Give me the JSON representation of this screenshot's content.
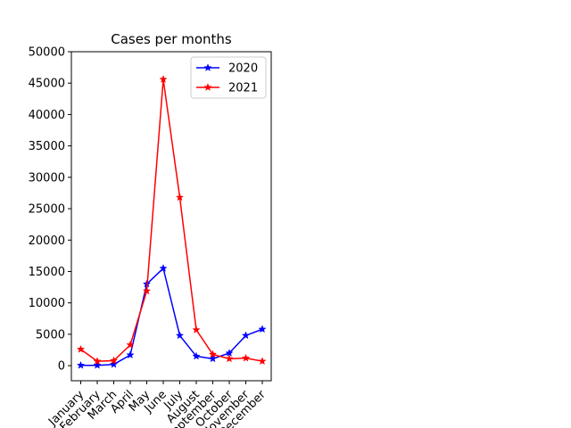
{
  "chart_data": {
    "type": "line",
    "title": "Cases per months",
    "xlabel": "",
    "ylabel": "",
    "categories": [
      "January",
      "February",
      "March",
      "April",
      "May",
      "June",
      "July",
      "August",
      "September",
      "October",
      "November",
      "December"
    ],
    "ylim": [
      -2400,
      50000
    ],
    "yticks": [
      0,
      5000,
      10000,
      15000,
      20000,
      25000,
      30000,
      35000,
      40000,
      45000,
      50000
    ],
    "grid": false,
    "legend_position": "top-right",
    "series": [
      {
        "name": "2020",
        "color": "#0000ff",
        "marker": "star",
        "values": [
          50,
          50,
          200,
          1700,
          13000,
          15500,
          4800,
          1500,
          1100,
          2000,
          4800,
          5800
        ]
      },
      {
        "name": "2021",
        "color": "#ff0000",
        "marker": "star",
        "values": [
          2600,
          700,
          800,
          3300,
          11900,
          45600,
          26800,
          5700,
          1800,
          1100,
          1200,
          700
        ]
      }
    ]
  }
}
